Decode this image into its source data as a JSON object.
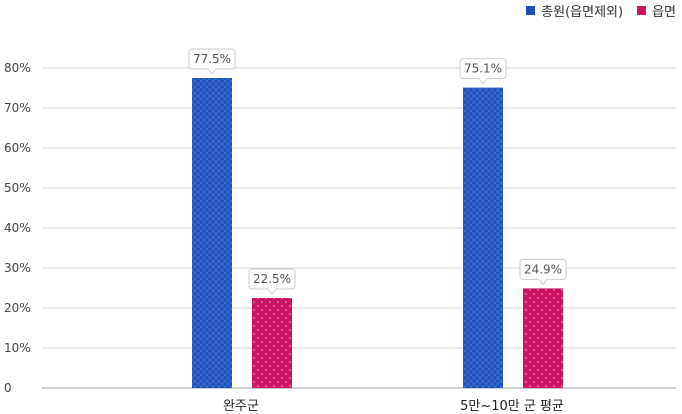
{
  "legend": {
    "items": [
      {
        "label": "총원(읍면제외)",
        "color": "#1f4fb4"
      },
      {
        "label": "읍면",
        "color": "#cc1462"
      }
    ]
  },
  "chart_data": {
    "type": "bar",
    "categories": [
      "완주군",
      "5만~10만 군 평균"
    ],
    "series": [
      {
        "name": "총원(읍면제외)",
        "values": [
          77.5,
          75.1
        ],
        "color": "#1f4fb4",
        "pattern": "crosshatch"
      },
      {
        "name": "읍면",
        "values": [
          22.5,
          24.9
        ],
        "color": "#cc1462",
        "pattern": "dots"
      }
    ],
    "data_labels": [
      [
        "77.5%",
        "75.1%"
      ],
      [
        "22.5%",
        "24.9%"
      ]
    ],
    "yticks": [
      "0",
      "10%",
      "20%",
      "30%",
      "40%",
      "50%",
      "60%",
      "70%",
      "80%"
    ],
    "ylim": [
      0,
      80
    ],
    "grid": true,
    "legend_position": "top-right"
  }
}
